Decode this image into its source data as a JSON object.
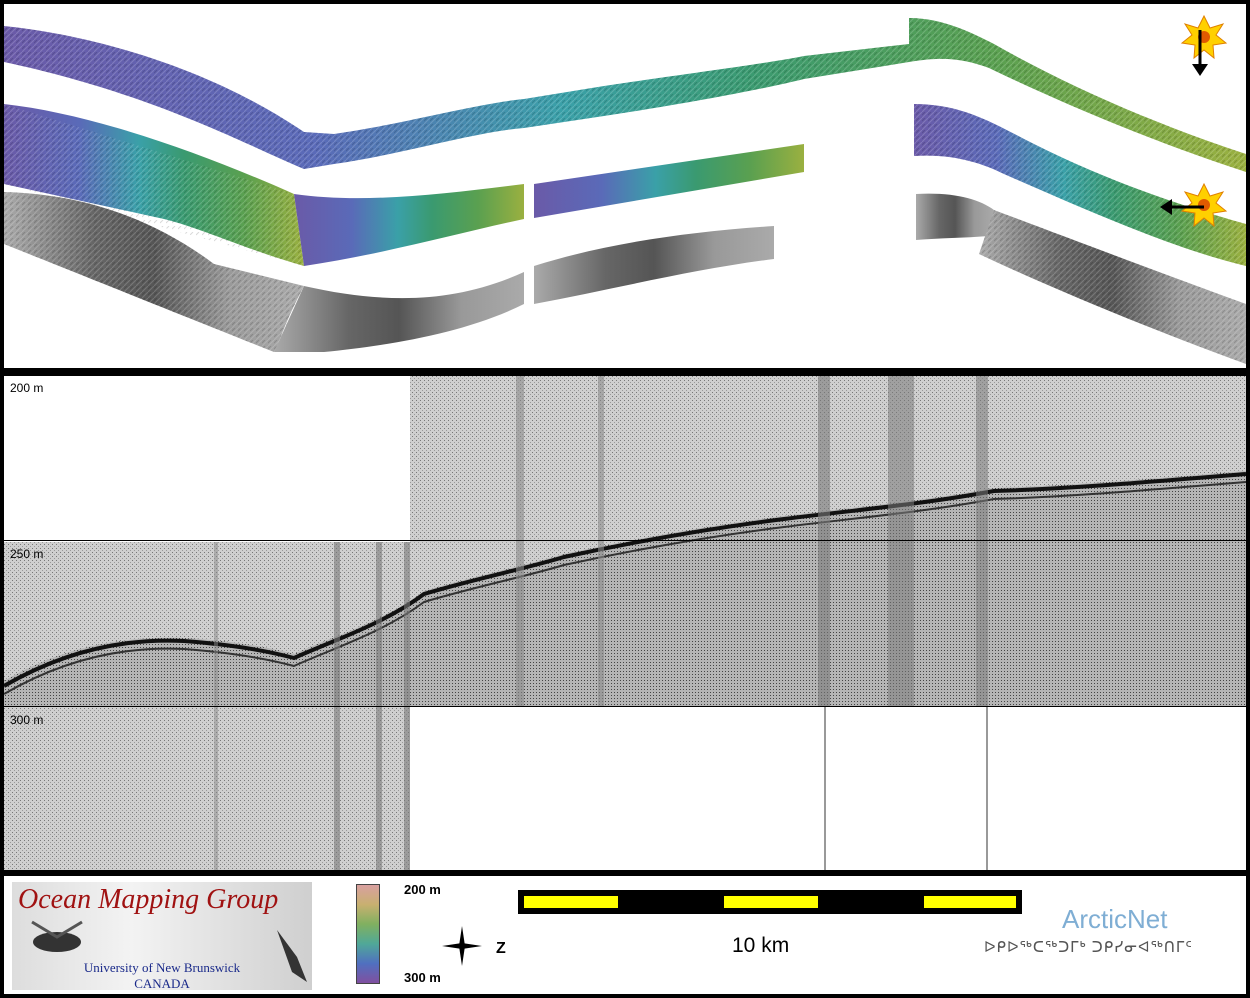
{
  "map": {
    "swath_colors": {
      "shallow": "#6aa83a",
      "mid": "#3aa890",
      "deep": "#7a5fb0",
      "backscatter": "#888888"
    }
  },
  "profile": {
    "depth_labels": [
      "200 m",
      "250 m",
      "300 m"
    ]
  },
  "footer": {
    "logo_title": "Ocean Mapping Group",
    "logo_sub1": "University of New Brunswick",
    "logo_sub2": "CANADA",
    "colorbar_top": "200 m",
    "colorbar_bottom": "300 m",
    "north_label": "Z",
    "scale_label": "10 km",
    "scale_colors": {
      "yellow": "#ffff00",
      "black": "#000000"
    },
    "partner_name": "ArcticNet",
    "partner_subtitle": "ᐅᑭᐅᖅᑕᖅᑐᒥᒃ ᑐᑭᓯᓂᐊᖅᑎᒥᑦ"
  }
}
